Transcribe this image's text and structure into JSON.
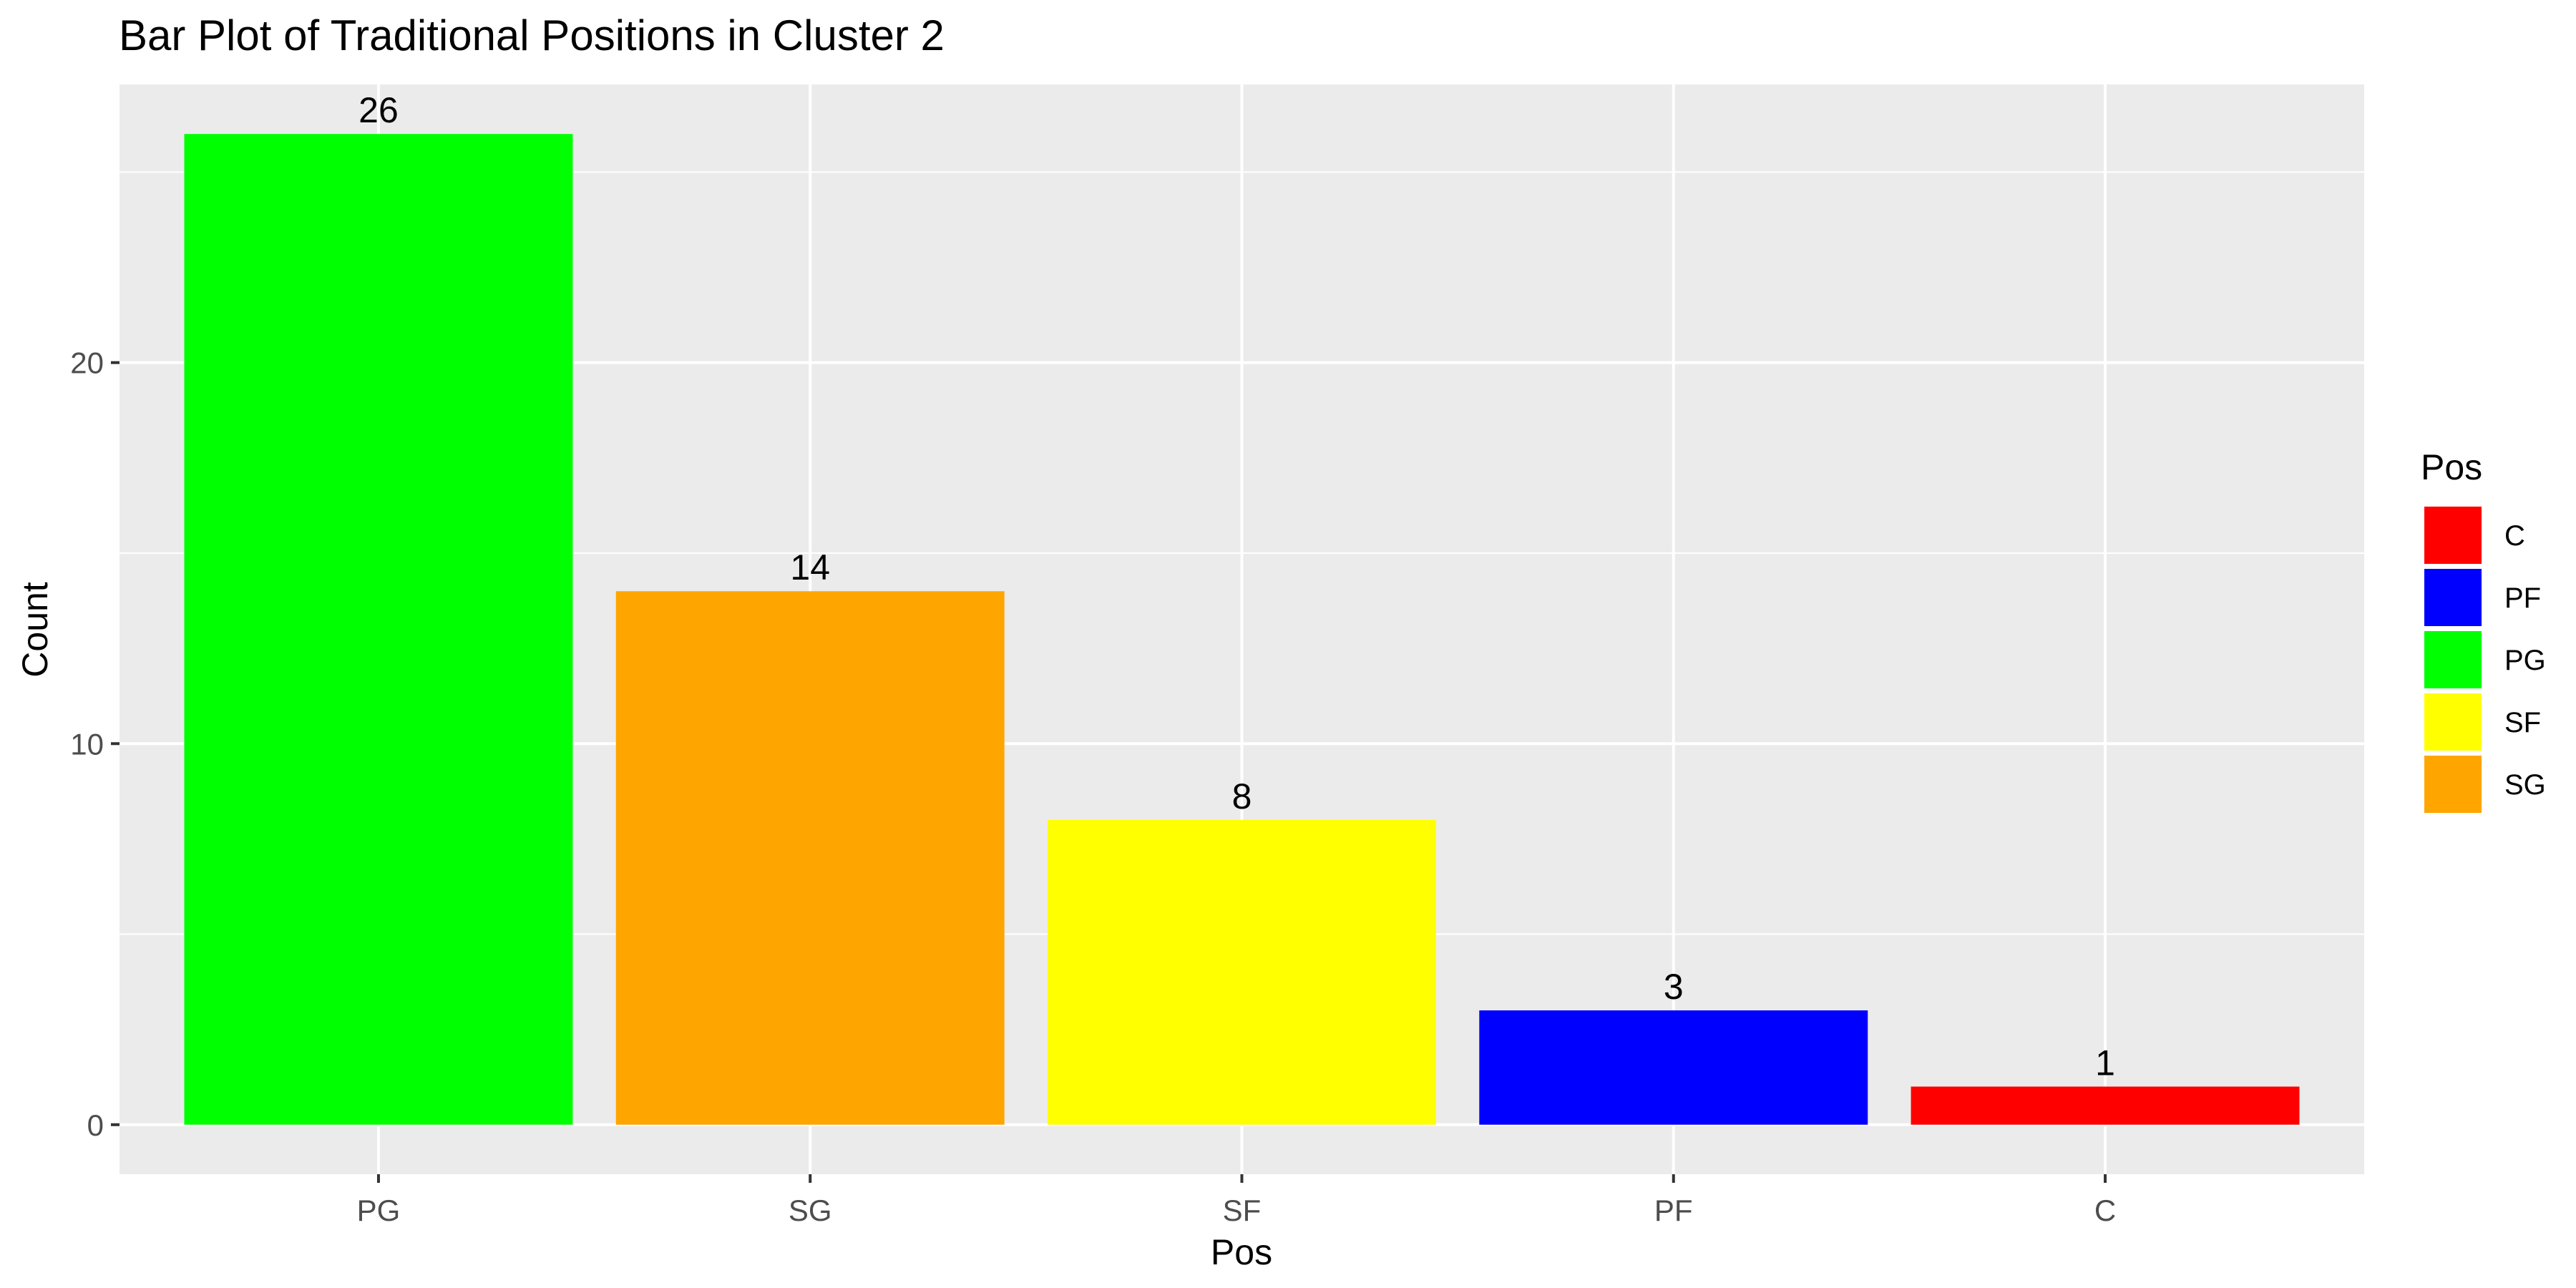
{
  "chart_data": {
    "type": "bar",
    "title": "Bar Plot of Traditional Positions in Cluster 2",
    "xlabel": "Pos",
    "ylabel": "Count",
    "categories": [
      "PG",
      "SG",
      "SF",
      "PF",
      "C"
    ],
    "values": [
      26,
      14,
      8,
      3,
      1
    ],
    "colors": [
      "#00ff00",
      "#ffa500",
      "#ffff00",
      "#0000ff",
      "#ff0000"
    ],
    "data_labels": [
      "26",
      "14",
      "8",
      "3",
      "1"
    ],
    "yticks": [
      0,
      10,
      20
    ],
    "ytick_labels": [
      "0",
      "10",
      "20"
    ],
    "ylim": [
      -1.3,
      27.3
    ],
    "grid": true,
    "panel_color": "#ebebeb",
    "legend": {
      "title": "Pos",
      "position": "right",
      "entries": [
        {
          "label": "C",
          "color": "#ff0000"
        },
        {
          "label": "PF",
          "color": "#0000ff"
        },
        {
          "label": "PG",
          "color": "#00ff00"
        },
        {
          "label": "SF",
          "color": "#ffff00"
        },
        {
          "label": "SG",
          "color": "#ffa500"
        }
      ]
    }
  }
}
